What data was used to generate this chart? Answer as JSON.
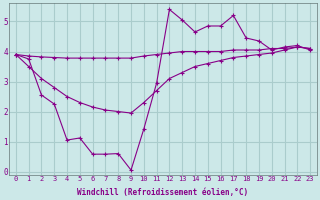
{
  "bg_color": "#cce8e8",
  "line_color": "#880088",
  "grid_color": "#aacccc",
  "xlabel": "Windchill (Refroidissement éolien,°C)",
  "xlabel_color": "#880088",
  "xlim": [
    -0.5,
    23.5
  ],
  "ylim": [
    -0.1,
    5.6
  ],
  "yticks": [
    0,
    1,
    2,
    3,
    4,
    5
  ],
  "xticks": [
    0,
    1,
    2,
    3,
    4,
    5,
    6,
    7,
    8,
    9,
    10,
    11,
    12,
    13,
    14,
    15,
    16,
    17,
    18,
    19,
    20,
    21,
    22,
    23
  ],
  "series1_x": [
    0,
    1,
    2,
    3,
    4,
    5,
    6,
    7,
    8,
    9,
    10,
    11,
    12,
    13,
    14,
    15,
    16,
    17,
    18,
    19,
    20,
    21,
    22,
    23
  ],
  "series1_y": [
    3.9,
    3.85,
    3.82,
    3.8,
    3.78,
    3.78,
    3.78,
    3.78,
    3.78,
    3.78,
    3.85,
    3.9,
    3.95,
    4.0,
    4.0,
    4.0,
    4.0,
    4.05,
    4.05,
    4.05,
    4.1,
    4.1,
    4.15,
    4.1
  ],
  "series2_x": [
    0,
    1,
    2,
    3,
    4,
    5,
    6,
    7,
    8,
    9,
    10,
    11,
    12,
    13,
    14,
    15,
    16,
    17,
    18,
    19,
    20,
    21,
    22,
    23
  ],
  "series2_y": [
    3.9,
    3.5,
    3.1,
    2.8,
    2.5,
    2.3,
    2.15,
    2.05,
    2.0,
    1.95,
    2.3,
    2.7,
    3.1,
    3.3,
    3.5,
    3.6,
    3.7,
    3.8,
    3.85,
    3.9,
    3.95,
    4.05,
    4.15,
    4.1
  ],
  "series3_x": [
    0,
    1,
    2,
    3,
    4,
    5,
    6,
    7,
    8,
    9,
    10,
    11,
    12,
    13,
    14,
    15,
    16,
    17,
    18,
    19,
    20,
    21,
    22,
    23
  ],
  "series3_y": [
    3.9,
    3.75,
    2.55,
    2.25,
    1.05,
    1.12,
    0.58,
    0.58,
    0.6,
    0.05,
    1.42,
    2.95,
    5.4,
    5.05,
    4.65,
    4.85,
    4.85,
    5.2,
    4.45,
    4.35,
    4.05,
    4.15,
    4.2,
    4.05
  ],
  "marker": "+"
}
